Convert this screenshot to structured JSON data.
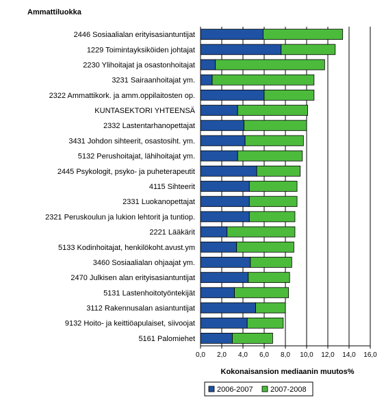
{
  "chart_data": {
    "type": "bar",
    "orientation": "horizontal",
    "stacked": true,
    "title": "Ammattiluokka",
    "xlabel": "Kokonaisansion mediaanin muutos%",
    "xlim": [
      0,
      16
    ],
    "xticks": [
      "0,0",
      "2,0",
      "4,0",
      "6,0",
      "8,0",
      "10,0",
      "12,0",
      "14,0",
      "16,0"
    ],
    "grid": "vertical",
    "legend_position": "bottom",
    "categories": [
      "2446  Sosiaalialan erityisasiantuntijat",
      "1229  Toimintayksiköiden johtajat",
      "2230  Ylihoitajat ja osastonhoitajat",
      "3231  Sairaanhoitajat ym.",
      "2322  Ammattikork. ja amm.oppilaitosten op.",
      "KUNTASEKTORI YHTEENSÄ",
      "2332  Lastentarhanopettajat",
      "3431  Johdon sihteerit, osastosiht. ym.",
      "5132  Perushoitajat, lähihoitajat ym.",
      "2445  Psykologit, psyko- ja puheterapeutit",
      "4115  Sihteerit",
      "2331  Luokanopettajat",
      "2321  Peruskoulun ja lukion lehtorit ja tuntiop.",
      "2221  Lääkärit",
      "5133  Kodinhoitajat, henkilökoht.avust.ym",
      "3460  Sosiaalialan ohjaajat ym.",
      "2470  Julkisen alan erityisasiantuntijat",
      "5131  Lastenhoitotyöntekijät",
      "3112  Rakennusalan asiantuntijat",
      "9132  Hoito- ja keittiöapulaiset, siivoojat",
      "5161  Palomiehet"
    ],
    "series": [
      {
        "name": "2006-2007",
        "color": "#1f52a3",
        "values": [
          5.9,
          7.6,
          1.4,
          1.1,
          6.0,
          3.5,
          4.1,
          4.2,
          3.5,
          5.3,
          4.6,
          4.6,
          4.6,
          2.5,
          3.4,
          4.7,
          4.5,
          3.2,
          5.2,
          4.4,
          3.0
        ]
      },
      {
        "name": "2007-2008",
        "color": "#4cbb3c",
        "values": [
          7.5,
          5.1,
          10.3,
          9.6,
          4.7,
          6.6,
          5.9,
          5.5,
          6.1,
          4.1,
          4.5,
          4.5,
          4.3,
          6.4,
          5.4,
          3.9,
          3.9,
          5.1,
          2.8,
          3.4,
          3.8
        ]
      }
    ]
  }
}
